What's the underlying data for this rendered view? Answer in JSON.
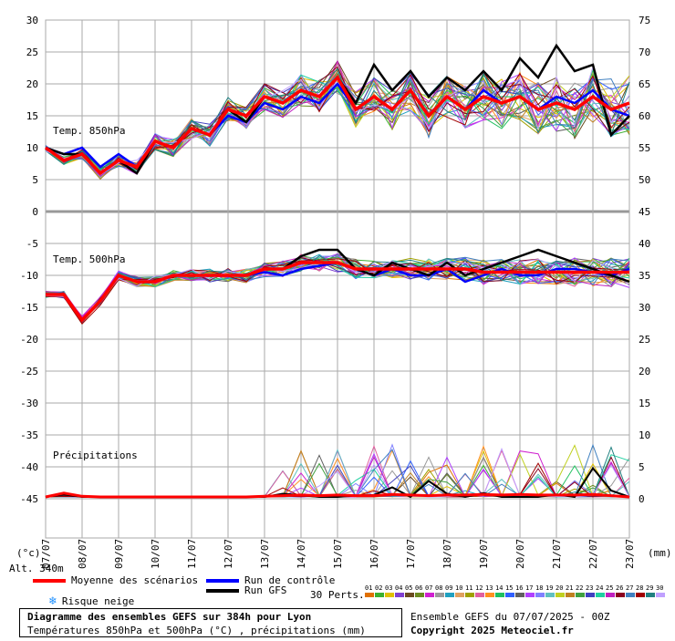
{
  "chart_data": {
    "type": "line",
    "title": "Diagramme des ensembles GEFS sur 384h pour Lyon",
    "subtitle": "Températures 850hPa et 500hPa (°C) , précipitations (mm)",
    "panels": {
      "t850": "Temp. 850hPa",
      "t500": "Temp. 500hPa",
      "precip": "Précipitations"
    },
    "y_left_ticks": [
      "30",
      "25",
      "20",
      "15",
      "10",
      "5",
      "0",
      "-5",
      "-10",
      "-15",
      "-20",
      "-25",
      "-30",
      "-35",
      "-40",
      "-45"
    ],
    "y_right_ticks_850": [
      "75",
      "70",
      "65",
      "60",
      "55",
      "50",
      "45"
    ],
    "y_right_ticks_500": [
      "40",
      "35",
      "30",
      "25",
      "20"
    ],
    "y_right_ticks_precip": [
      "15",
      "10",
      "5",
      "0"
    ],
    "left_unit": "(°c)",
    "right_unit": "(mm)",
    "altitude": "Alt. 340m",
    "x_dates": [
      "07/07",
      "08/07",
      "09/07",
      "10/07",
      "11/07",
      "12/07",
      "13/07",
      "14/07",
      "15/07",
      "16/07",
      "17/07",
      "18/07",
      "19/07",
      "20/07",
      "21/07",
      "22/07",
      "23/07"
    ],
    "mean_850": [
      10,
      8,
      9,
      6,
      8,
      7,
      11,
      10,
      13,
      12,
      16,
      15,
      18,
      17,
      19,
      18,
      21,
      16,
      18,
      16,
      19,
      15,
      18,
      16,
      18,
      17,
      18,
      16,
      17,
      16,
      18,
      16,
      17
    ],
    "mean_500": [
      -13,
      -13,
      -17,
      -14,
      -10,
      -11,
      -11,
      -10,
      -10,
      -10,
      -10,
      -10,
      -9,
      -9,
      -8,
      -8,
      -8,
      -9,
      -9,
      -9,
      -9,
      -9,
      -9,
      -9,
      -9.5,
      -9.5,
      -9.5,
      -9.5,
      -9.5,
      -9.5,
      -9.5,
      -9.5,
      -9.5
    ],
    "mean_precip": [
      0,
      0.6,
      0.1,
      0,
      0,
      0,
      0,
      0,
      0,
      0,
      0,
      0,
      0.1,
      0.2,
      0.3,
      0.2,
      0.3,
      0.2,
      0.2,
      0.4,
      0.3,
      0.2,
      0.3,
      0.3,
      0.4,
      0.3,
      0.4,
      0.3,
      0.3,
      0.3,
      0.4,
      0.2,
      0
    ],
    "control_850": [
      10,
      9,
      10,
      7,
      9,
      7,
      11,
      10,
      13,
      12,
      15,
      14,
      17,
      16,
      18,
      17,
      20,
      16,
      18,
      16,
      19,
      15,
      18,
      16,
      19,
      17,
      18,
      16,
      18,
      17,
      19,
      16,
      15
    ],
    "control_500": [
      -13,
      -13,
      -17,
      -14,
      -10,
      -11,
      -11,
      -10,
      -10,
      -10,
      -10,
      -10,
      -9.5,
      -10,
      -9,
      -8.5,
      -8,
      -9,
      -10,
      -9,
      -10,
      -10,
      -9,
      -11,
      -10,
      -9,
      -10,
      -10,
      -9,
      -9,
      -9.5,
      -10,
      -9
    ],
    "gfs_850": [
      10,
      9,
      9,
      6,
      8,
      6,
      11,
      10,
      13,
      12,
      16,
      14,
      18,
      17,
      19,
      18,
      21,
      17,
      23,
      19,
      22,
      18,
      21,
      19,
      22,
      19,
      24,
      21,
      26,
      22,
      23,
      12,
      15
    ],
    "gfs_500": [
      -13,
      -13,
      -17,
      -14,
      -10,
      -11,
      -11,
      -10,
      -10,
      -10,
      -10,
      -10,
      -9,
      -9,
      -7,
      -6,
      -6,
      -9,
      -10,
      -8,
      -9,
      -10,
      -8,
      -10,
      -9,
      -8,
      -7,
      -6,
      -7,
      -8,
      -9,
      -10,
      -11
    ],
    "gfs_precip": [
      0,
      0.4,
      0,
      0,
      0,
      0,
      0,
      0,
      0,
      0,
      0,
      0,
      0,
      0.5,
      0.3,
      0,
      0,
      0.2,
      0.3,
      1.5,
      0,
      2.5,
      0.5,
      0,
      0.6,
      0,
      0,
      0,
      0.4,
      0,
      4.5,
      1,
      0
    ],
    "legend": {
      "mean": "Moyenne des scénarios",
      "control": "Run de contrôle",
      "gfs": "Run GFS",
      "snow": "Risque neige",
      "perts": "30 Perts."
    },
    "pert_labels": [
      "01",
      "02",
      "03",
      "04",
      "05",
      "06",
      "07",
      "08",
      "09",
      "10",
      "11",
      "12",
      "13",
      "14",
      "15",
      "16",
      "17",
      "18",
      "19",
      "20",
      "21",
      "22",
      "23",
      "24",
      "25",
      "26",
      "27",
      "28",
      "29",
      "30"
    ],
    "colors": {
      "mean": "#ff0000",
      "control": "#0000ff",
      "gfs": "#000000",
      "grid": "#aaaaaa",
      "snow": "#1e90ff",
      "perts": [
        "#e07000",
        "#3bb030",
        "#e0c000",
        "#8040d0",
        "#6a4a20",
        "#6a8a20",
        "#d020d0",
        "#9a9a9a",
        "#20a0c0",
        "#e0a060",
        "#a0a000",
        "#e060a0",
        "#ff9020",
        "#20c060",
        "#3060ff",
        "#606060",
        "#b040ff",
        "#8080ff",
        "#60c0c0",
        "#c0d020",
        "#c08020",
        "#40a040",
        "#4040c0",
        "#20d0a0",
        "#c020c0",
        "#8a0020",
        "#4080c0",
        "#a00000",
        "#208080",
        "#c0a0ff"
      ]
    }
  },
  "footer": {
    "run": "Ensemble GEFS du 07/07/2025 - 00Z",
    "copyright": "Copyright 2025 Meteociel.fr"
  }
}
